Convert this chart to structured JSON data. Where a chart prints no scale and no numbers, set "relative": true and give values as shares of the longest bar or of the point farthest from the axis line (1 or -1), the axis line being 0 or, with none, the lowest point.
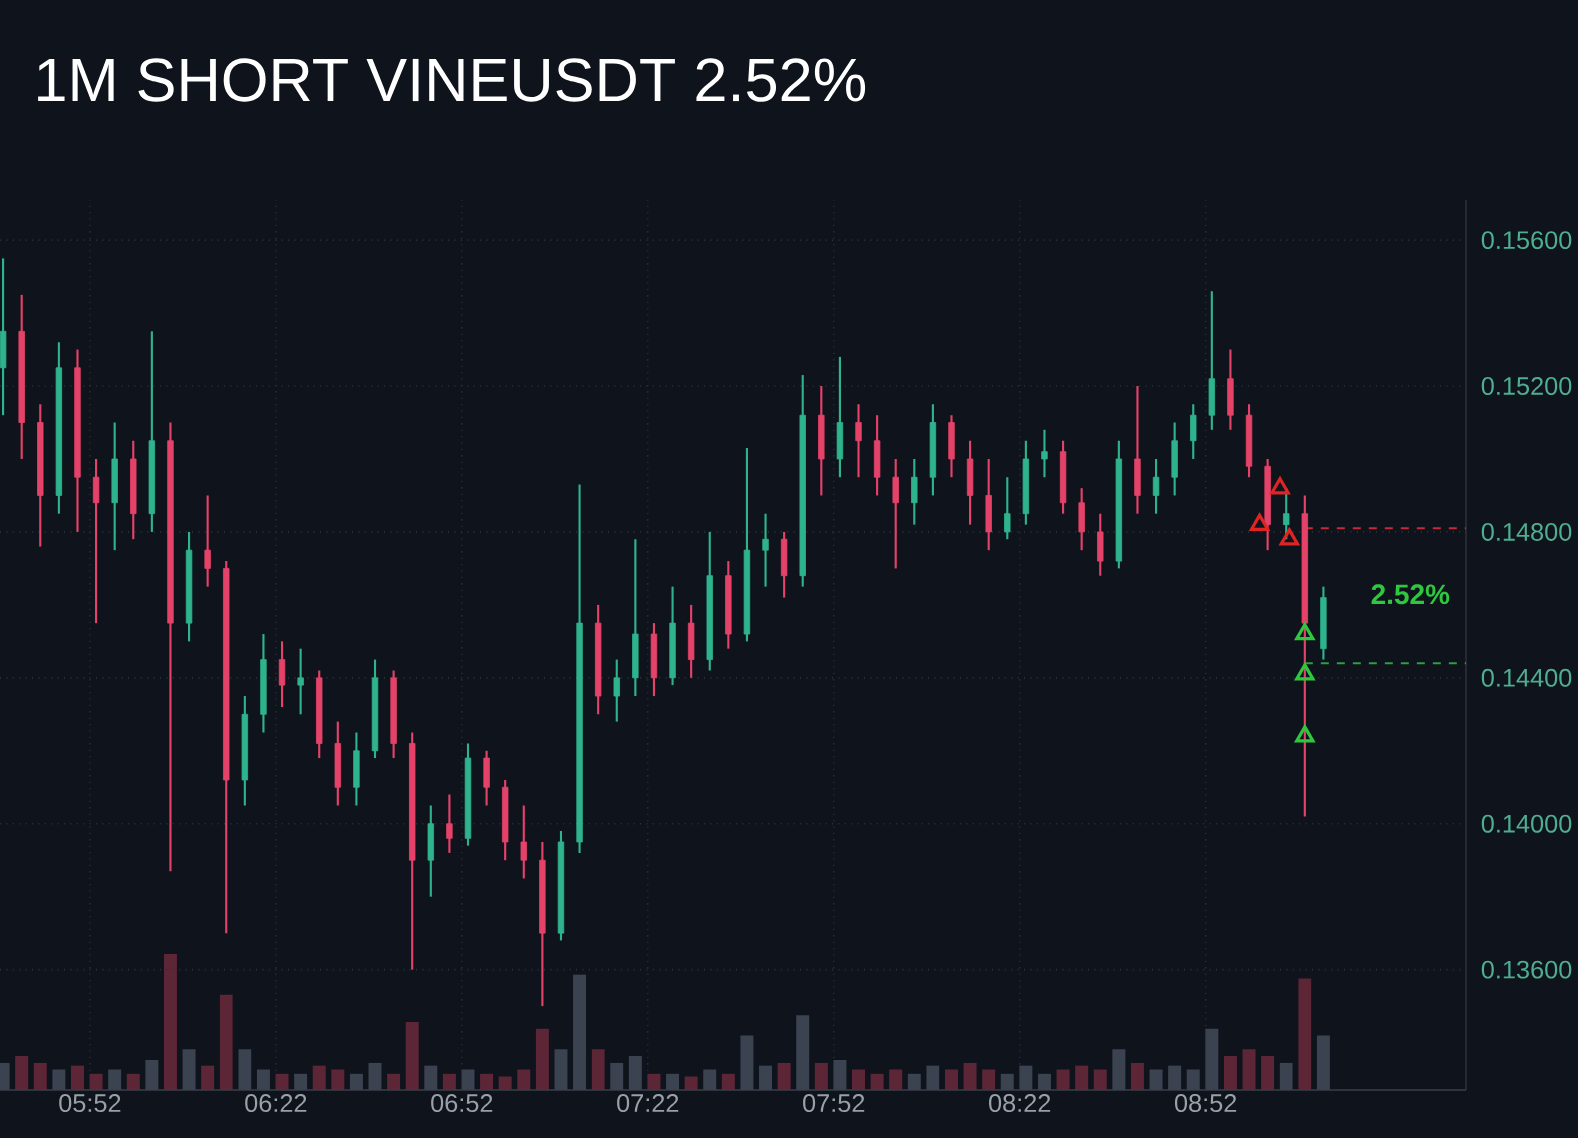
{
  "chart_data": [
    {
      "type": "candlestick",
      "title": "1M SHORT VINEUSDT 2.52%",
      "x": [
        5.6333,
        5.6833,
        5.7333,
        5.7833,
        5.8333,
        5.8833,
        5.9333,
        5.9833,
        6.0333,
        6.0833,
        6.1333,
        6.1833,
        6.2333,
        6.2833,
        6.3333,
        6.3833,
        6.4333,
        6.4833,
        6.5333,
        6.5833,
        6.6333,
        6.6833,
        6.7333,
        6.7833,
        6.8333,
        6.8833,
        6.9333,
        6.9833,
        7.0333,
        7.0833,
        7.1333,
        7.1833,
        7.2333,
        7.2833,
        7.3333,
        7.3833,
        7.4333,
        7.4833,
        7.5333,
        7.5833,
        7.6333,
        7.6833,
        7.7333,
        7.7833,
        7.8333,
        7.8833,
        7.9333,
        7.9833,
        8.0333,
        8.0833,
        8.1333,
        8.1833,
        8.2333,
        8.2833,
        8.3333,
        8.3833,
        8.4333,
        8.4833,
        8.5333,
        8.5833,
        8.6333,
        8.6833,
        8.7333,
        8.7833,
        8.8333,
        8.8833,
        8.9333,
        8.9833,
        9.0333,
        9.0833,
        9.1333,
        9.1833
      ],
      "ohlc": [
        [
          0.1525,
          0.1555,
          0.1512,
          0.1535
        ],
        [
          0.1535,
          0.1545,
          0.15,
          0.151
        ],
        [
          0.151,
          0.1515,
          0.1476,
          0.149
        ],
        [
          0.149,
          0.1532,
          0.1485,
          0.1525
        ],
        [
          0.1525,
          0.153,
          0.148,
          0.1495
        ],
        [
          0.1495,
          0.15,
          0.1455,
          0.1488
        ],
        [
          0.1488,
          0.151,
          0.1475,
          0.15
        ],
        [
          0.15,
          0.1505,
          0.1478,
          0.1485
        ],
        [
          0.1485,
          0.1535,
          0.148,
          0.1505
        ],
        [
          0.1505,
          0.151,
          0.1387,
          0.1455
        ],
        [
          0.1455,
          0.148,
          0.145,
          0.1475
        ],
        [
          0.1475,
          0.149,
          0.1465,
          0.147
        ],
        [
          0.147,
          0.1472,
          0.137,
          0.1412
        ],
        [
          0.1412,
          0.1435,
          0.1405,
          0.143
        ],
        [
          0.143,
          0.1452,
          0.1425,
          0.1445
        ],
        [
          0.1445,
          0.145,
          0.1432,
          0.1438
        ],
        [
          0.1438,
          0.1448,
          0.143,
          0.144
        ],
        [
          0.144,
          0.1442,
          0.1418,
          0.1422
        ],
        [
          0.1422,
          0.1428,
          0.1405,
          0.141
        ],
        [
          0.141,
          0.1425,
          0.1405,
          0.142
        ],
        [
          0.142,
          0.1445,
          0.1418,
          0.144
        ],
        [
          0.144,
          0.1442,
          0.1418,
          0.1422
        ],
        [
          0.1422,
          0.1425,
          0.136,
          0.139
        ],
        [
          0.139,
          0.1405,
          0.138,
          0.14
        ],
        [
          0.14,
          0.1408,
          0.1392,
          0.1396
        ],
        [
          0.1396,
          0.1422,
          0.1394,
          0.1418
        ],
        [
          0.1418,
          0.142,
          0.1405,
          0.141
        ],
        [
          0.141,
          0.1412,
          0.139,
          0.1395
        ],
        [
          0.1395,
          0.1405,
          0.1385,
          0.139
        ],
        [
          0.139,
          0.1395,
          0.135,
          0.137
        ],
        [
          0.137,
          0.1398,
          0.1368,
          0.1395
        ],
        [
          0.1395,
          0.1493,
          0.1392,
          0.1455
        ],
        [
          0.1455,
          0.146,
          0.143,
          0.1435
        ],
        [
          0.1435,
          0.1445,
          0.1428,
          0.144
        ],
        [
          0.144,
          0.1478,
          0.1435,
          0.1452
        ],
        [
          0.1452,
          0.1455,
          0.1435,
          0.144
        ],
        [
          0.144,
          0.1465,
          0.1438,
          0.1455
        ],
        [
          0.1455,
          0.146,
          0.144,
          0.1445
        ],
        [
          0.1445,
          0.148,
          0.1442,
          0.1468
        ],
        [
          0.1468,
          0.1472,
          0.1448,
          0.1452
        ],
        [
          0.1452,
          0.1503,
          0.145,
          0.1475
        ],
        [
          0.1475,
          0.1485,
          0.1465,
          0.1478
        ],
        [
          0.1478,
          0.148,
          0.1462,
          0.1468
        ],
        [
          0.1468,
          0.1523,
          0.1465,
          0.1512
        ],
        [
          0.1512,
          0.152,
          0.149,
          0.15
        ],
        [
          0.15,
          0.1528,
          0.1495,
          0.151
        ],
        [
          0.151,
          0.1515,
          0.1495,
          0.1505
        ],
        [
          0.1505,
          0.1512,
          0.149,
          0.1495
        ],
        [
          0.1495,
          0.15,
          0.147,
          0.1488
        ],
        [
          0.1488,
          0.15,
          0.1482,
          0.1495
        ],
        [
          0.1495,
          0.1515,
          0.149,
          0.151
        ],
        [
          0.151,
          0.1512,
          0.1495,
          0.15
        ],
        [
          0.15,
          0.1505,
          0.1482,
          0.149
        ],
        [
          0.149,
          0.15,
          0.1475,
          0.148
        ],
        [
          0.148,
          0.1495,
          0.1478,
          0.1485
        ],
        [
          0.1485,
          0.1505,
          0.1482,
          0.15
        ],
        [
          0.15,
          0.1508,
          0.1495,
          0.1502
        ],
        [
          0.1502,
          0.1505,
          0.1485,
          0.1488
        ],
        [
          0.1488,
          0.1492,
          0.1475,
          0.148
        ],
        [
          0.148,
          0.1485,
          0.1468,
          0.1472
        ],
        [
          0.1472,
          0.1505,
          0.147,
          0.15
        ],
        [
          0.15,
          0.152,
          0.1485,
          0.149
        ],
        [
          0.149,
          0.15,
          0.1485,
          0.1495
        ],
        [
          0.1495,
          0.151,
          0.149,
          0.1505
        ],
        [
          0.1505,
          0.1515,
          0.15,
          0.1512
        ],
        [
          0.1512,
          0.1546,
          0.1508,
          0.1522
        ],
        [
          0.1522,
          0.153,
          0.1508,
          0.1512
        ],
        [
          0.1512,
          0.1515,
          0.1495,
          0.1498
        ],
        [
          0.1498,
          0.15,
          0.1475,
          0.1482
        ],
        [
          0.1482,
          0.1492,
          0.1478,
          0.1485
        ],
        [
          0.1485,
          0.149,
          0.1402,
          0.1455
        ],
        [
          0.1448,
          0.1465,
          0.1445,
          0.1462
        ]
      ],
      "colors": [
        "#2fb38d",
        "#e5426a",
        "#e5426a",
        "#2fb38d",
        "#e5426a",
        "#e5426a",
        "#2fb38d",
        "#e5426a",
        "#2fb38d",
        "#e5426a",
        "#2fb38d",
        "#e5426a",
        "#e5426a",
        "#2fb38d",
        "#2fb38d",
        "#e5426a",
        "#2fb38d",
        "#e5426a",
        "#e5426a",
        "#2fb38d",
        "#2fb38d",
        "#e5426a",
        "#e5426a",
        "#2fb38d",
        "#e5426a",
        "#2fb38d",
        "#e5426a",
        "#e5426a",
        "#e5426a",
        "#e5426a",
        "#2fb38d",
        "#2fb38d",
        "#e5426a",
        "#2fb38d",
        "#2fb38d",
        "#e5426a",
        "#2fb38d",
        "#e5426a",
        "#2fb38d",
        "#e5426a",
        "#2fb38d",
        "#2fb38d",
        "#e5426a",
        "#2fb38d",
        "#e5426a",
        "#2fb38d",
        "#e5426a",
        "#e5426a",
        "#e5426a",
        "#2fb38d",
        "#2fb38d",
        "#e5426a",
        "#e5426a",
        "#e5426a",
        "#2fb38d",
        "#2fb38d",
        "#2fb38d",
        "#e5426a",
        "#e5426a",
        "#e5426a",
        "#2fb38d",
        "#e5426a",
        "#2fb38d",
        "#2fb38d",
        "#2fb38d",
        "#2fb38d",
        "#e5426a",
        "#e5426a",
        "#e5426a",
        "#2fb38d",
        "#e5426a",
        "#2fb38d"
      ],
      "series": [
        {
          "type": "scatter",
          "x": [
            9.0117,
            9.0667,
            9.0917
          ],
          "values": [
            0.1482,
            0.1492,
            0.1478
          ],
          "color": "#e02424",
          "marker": "triangle"
        },
        {
          "type": "scatter",
          "x": [
            9.1333,
            9.1333,
            9.1333
          ],
          "values": [
            0.1452,
            0.1441,
            0.1424
          ],
          "color": "#2ec83e",
          "marker": "triangle"
        }
      ],
      "xlim": [
        5.625,
        9.5667
      ],
      "ylim": [
        0.1327,
        0.1571
      ],
      "xticks": [
        {
          "value": 5.8667,
          "label": "05:52"
        },
        {
          "value": 6.3667,
          "label": "06:22"
        },
        {
          "value": 6.8667,
          "label": "06:52"
        },
        {
          "value": 7.3667,
          "label": "07:22"
        },
        {
          "value": 7.8667,
          "label": "07:52"
        },
        {
          "value": 8.3667,
          "label": "08:22"
        },
        {
          "value": 8.8667,
          "label": "08:52"
        }
      ],
      "yticks": [
        {
          "value": 0.136,
          "label": "0.13600"
        },
        {
          "value": 0.14,
          "label": "0.14000"
        },
        {
          "value": 0.144,
          "label": "0.14400"
        },
        {
          "value": 0.148,
          "label": "0.14800"
        },
        {
          "value": 0.152,
          "label": "0.15200"
        },
        {
          "value": 0.156,
          "label": "0.15600"
        }
      ],
      "grid": true,
      "ref_lines": [
        {
          "axis": "y",
          "value": 0.1481,
          "color": "#c62a35",
          "line_style": "dashed"
        },
        {
          "axis": "y",
          "value": 0.1444,
          "color": "#2e9e3e",
          "line_style": "dashed"
        }
      ],
      "annotations": [
        "2.52%"
      ]
    },
    {
      "type": "bar",
      "relative": true,
      "categories": [
        null,
        null,
        null,
        null,
        null,
        null,
        null,
        null,
        null,
        null,
        null,
        null,
        null,
        null,
        null,
        null,
        null,
        null,
        null,
        null,
        null,
        null,
        null,
        null,
        null,
        null,
        null,
        null,
        null,
        null,
        null,
        null,
        null,
        null,
        null,
        null,
        null,
        null,
        null,
        null,
        null,
        null,
        null,
        null,
        null,
        null,
        null,
        null,
        null,
        null,
        null,
        null,
        null,
        null,
        null,
        null,
        null,
        null,
        null,
        null,
        null,
        null,
        null,
        null,
        null,
        null,
        null,
        null,
        null,
        null,
        null,
        null
      ],
      "values": [
        0.2,
        0.25,
        0.2,
        0.15,
        0.18,
        0.12,
        0.15,
        0.12,
        0.22,
        1.0,
        0.3,
        0.18,
        0.7,
        0.3,
        0.15,
        0.12,
        0.12,
        0.18,
        0.15,
        0.12,
        0.2,
        0.12,
        0.5,
        0.18,
        0.12,
        0.15,
        0.12,
        0.1,
        0.15,
        0.45,
        0.3,
        0.85,
        0.3,
        0.2,
        0.25,
        0.12,
        0.12,
        0.1,
        0.15,
        0.12,
        0.4,
        0.18,
        0.2,
        0.55,
        0.2,
        0.22,
        0.15,
        0.12,
        0.15,
        0.12,
        0.18,
        0.15,
        0.2,
        0.15,
        0.12,
        0.18,
        0.12,
        0.15,
        0.18,
        0.15,
        0.3,
        0.2,
        0.15,
        0.18,
        0.15,
        0.45,
        0.25,
        0.3,
        0.25,
        0.2,
        0.82,
        0.4
      ],
      "colors": [
        "#3b4350",
        "#5c2636",
        "#5c2636",
        "#3b4350",
        "#5c2636",
        "#5c2636",
        "#3b4350",
        "#5c2636",
        "#3b4350",
        "#5c2636",
        "#3b4350",
        "#5c2636",
        "#5c2636",
        "#3b4350",
        "#3b4350",
        "#5c2636",
        "#3b4350",
        "#5c2636",
        "#5c2636",
        "#3b4350",
        "#3b4350",
        "#5c2636",
        "#5c2636",
        "#3b4350",
        "#5c2636",
        "#3b4350",
        "#5c2636",
        "#5c2636",
        "#5c2636",
        "#5c2636",
        "#3b4350",
        "#3b4350",
        "#5c2636",
        "#3b4350",
        "#3b4350",
        "#5c2636",
        "#3b4350",
        "#5c2636",
        "#3b4350",
        "#5c2636",
        "#3b4350",
        "#3b4350",
        "#5c2636",
        "#3b4350",
        "#5c2636",
        "#3b4350",
        "#5c2636",
        "#5c2636",
        "#5c2636",
        "#3b4350",
        "#3b4350",
        "#5c2636",
        "#5c2636",
        "#5c2636",
        "#3b4350",
        "#3b4350",
        "#3b4350",
        "#5c2636",
        "#5c2636",
        "#5c2636",
        "#3b4350",
        "#5c2636",
        "#3b4350",
        "#3b4350",
        "#3b4350",
        "#3b4350",
        "#5c2636",
        "#5c2636",
        "#5c2636",
        "#3b4350",
        "#5c2636",
        "#3b4350"
      ]
    }
  ]
}
